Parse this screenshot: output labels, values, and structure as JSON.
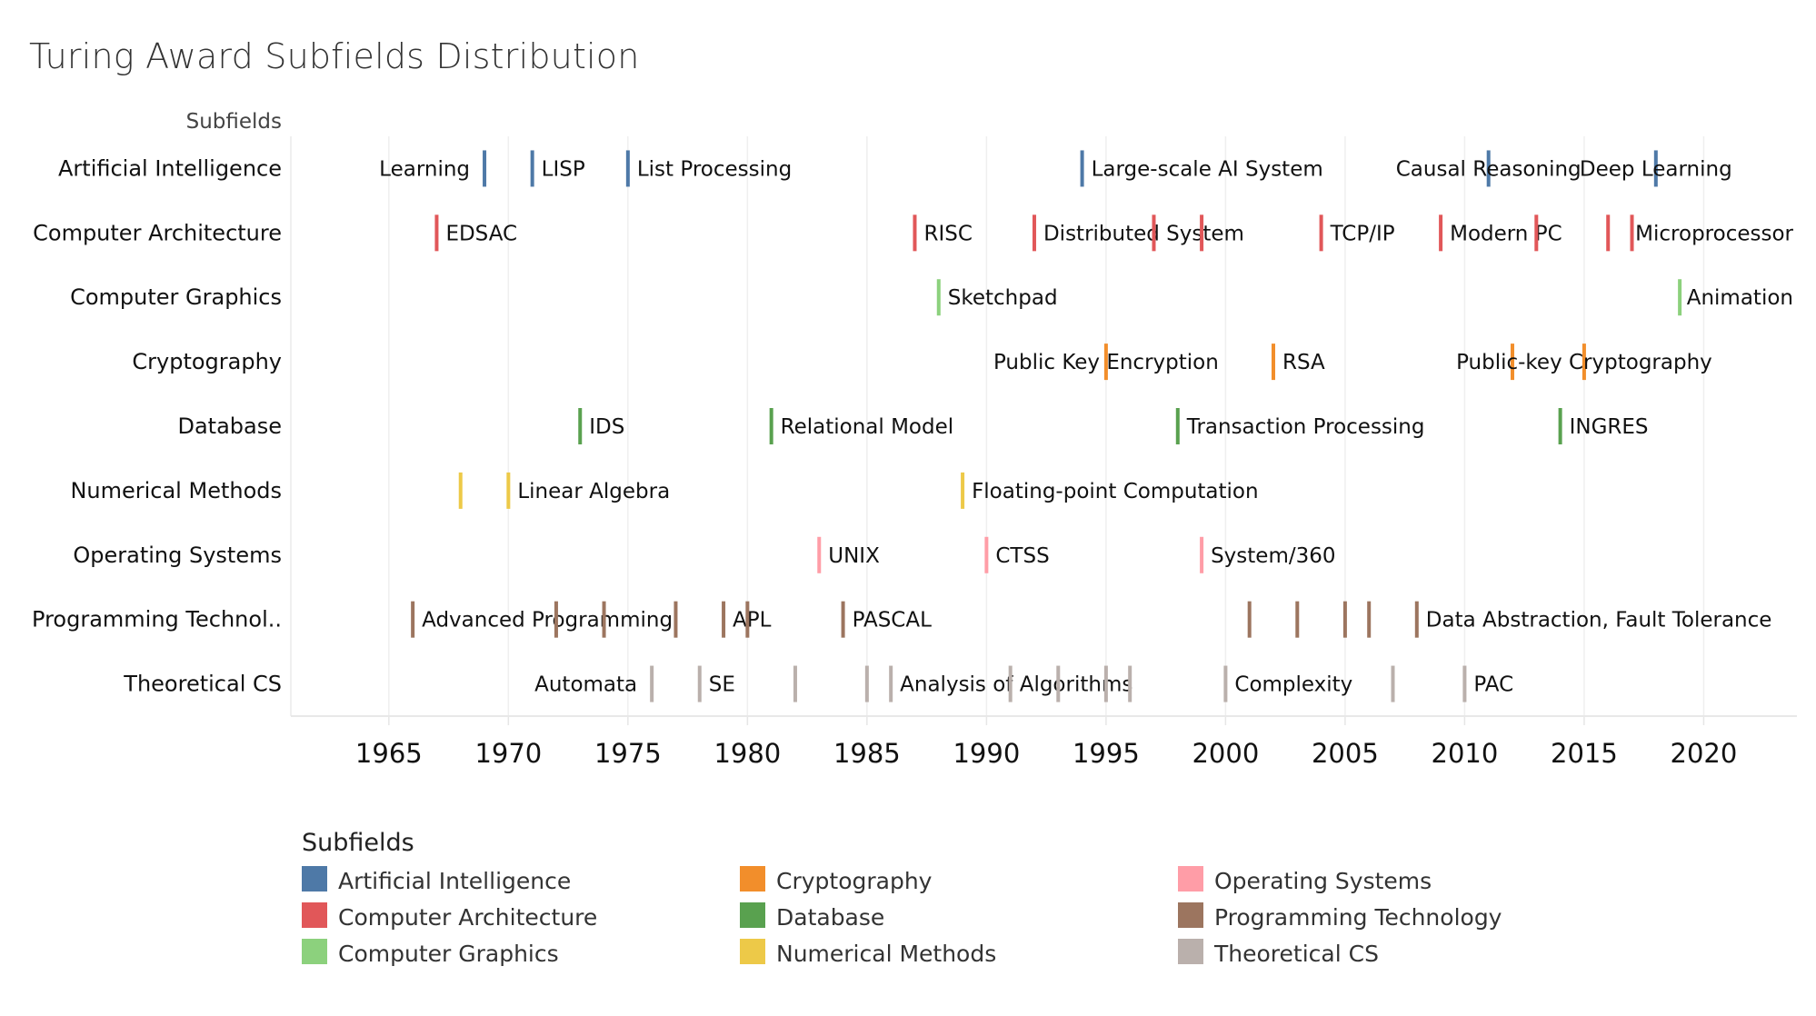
{
  "title": "Turing Award Subfields Distribution",
  "chart_data": {
    "type": "timeline-strip",
    "title": "Turing Award Subfields Distribution",
    "ylabel": "Subfields",
    "xlabel": "",
    "xlim": [
      1960.9,
      2023.9
    ],
    "x_ticks": [
      1965,
      1970,
      1975,
      1980,
      1985,
      1990,
      1995,
      2000,
      2005,
      2010,
      2015,
      2020
    ],
    "grid": true,
    "legend_title": "Subfields",
    "legend_position": "bottom",
    "series": [
      {
        "name": "Artificial Intelligence",
        "display": "Artificial Intelligence",
        "color": "#4e79a7",
        "points": [
          {
            "year": 1969,
            "label": "Learning",
            "label_pos": "left"
          },
          {
            "year": 1971,
            "label": "LISP",
            "label_pos": "right"
          },
          {
            "year": 1975,
            "label": "List Processing",
            "label_pos": "right"
          },
          {
            "year": 1994,
            "label": "Large-scale AI System",
            "label_pos": "right"
          },
          {
            "year": 2011,
            "label": "Causal Reasoning",
            "label_pos": "center"
          },
          {
            "year": 2018,
            "label": "Deep Learning",
            "label_pos": "center"
          }
        ]
      },
      {
        "name": "Computer Architecture",
        "display": "Computer Architecture",
        "color": "#e15759",
        "points": [
          {
            "year": 1967,
            "label": "EDSAC",
            "label_pos": "right"
          },
          {
            "year": 1987,
            "label": "RISC",
            "label_pos": "right"
          },
          {
            "year": 1992,
            "label": "Distributed System",
            "label_pos": "right"
          },
          {
            "year": 1997,
            "label": "",
            "label_pos": "right"
          },
          {
            "year": 1999,
            "label": "",
            "label_pos": "right"
          },
          {
            "year": 2004,
            "label": "TCP/IP",
            "label_pos": "right"
          },
          {
            "year": 2009,
            "label": "Modern PC",
            "label_pos": "right"
          },
          {
            "year": 2013,
            "label": "",
            "label_pos": "right"
          },
          {
            "year": 2016,
            "label": "",
            "label_pos": "right"
          },
          {
            "year": 2017,
            "label": "Microprocessor",
            "label_pos": "right"
          }
        ]
      },
      {
        "name": "Computer Graphics",
        "display": "Computer Graphics",
        "color": "#8cd17d",
        "points": [
          {
            "year": 1988,
            "label": "Sketchpad",
            "label_pos": "right"
          },
          {
            "year": 2019,
            "label": "Animation",
            "label_pos": "right"
          }
        ]
      },
      {
        "name": "Cryptography",
        "display": "Cryptography",
        "color": "#f28e2b",
        "points": [
          {
            "year": 1995,
            "label": "Public Key Encryption",
            "label_pos": "center"
          },
          {
            "year": 2002,
            "label": "RSA",
            "label_pos": "right"
          },
          {
            "year": 2012,
            "label": "",
            "label_pos": "right"
          },
          {
            "year": 2015,
            "label": "Public-key Cryptography",
            "label_pos": "center"
          }
        ]
      },
      {
        "name": "Database",
        "display": "Database",
        "color": "#59a14f",
        "points": [
          {
            "year": 1973,
            "label": "IDS",
            "label_pos": "right"
          },
          {
            "year": 1981,
            "label": "Relational Model",
            "label_pos": "right"
          },
          {
            "year": 1998,
            "label": "Transaction Processing",
            "label_pos": "right"
          },
          {
            "year": 2014,
            "label": "INGRES",
            "label_pos": "right"
          }
        ]
      },
      {
        "name": "Numerical Methods",
        "display": "Numerical Methods",
        "color": "#edc948",
        "points": [
          {
            "year": 1968,
            "label": "",
            "label_pos": "right"
          },
          {
            "year": 1970,
            "label": "Linear Algebra",
            "label_pos": "right"
          },
          {
            "year": 1989,
            "label": "Floating-point Computation",
            "label_pos": "right"
          }
        ]
      },
      {
        "name": "Operating Systems",
        "display": "Operating Systems",
        "color": "#ff9da7",
        "points": [
          {
            "year": 1983,
            "label": "UNIX",
            "label_pos": "right"
          },
          {
            "year": 1990,
            "label": "CTSS",
            "label_pos": "right"
          },
          {
            "year": 1999,
            "label": "System/360",
            "label_pos": "right"
          }
        ]
      },
      {
        "name": "Programming Technology",
        "display": "Programming Technol..",
        "color": "#9c755f",
        "points": [
          {
            "year": 1966,
            "label": "Advanced Programming",
            "label_pos": "right"
          },
          {
            "year": 1972,
            "label": "",
            "label_pos": "right"
          },
          {
            "year": 1974,
            "label": "",
            "label_pos": "right"
          },
          {
            "year": 1977,
            "label": "",
            "label_pos": "right"
          },
          {
            "year": 1979,
            "label": "APL",
            "label_pos": "right"
          },
          {
            "year": 1980,
            "label": "",
            "label_pos": "right"
          },
          {
            "year": 1984,
            "label": "PASCAL",
            "label_pos": "right"
          },
          {
            "year": 2001,
            "label": "",
            "label_pos": "right"
          },
          {
            "year": 2003,
            "label": "",
            "label_pos": "right"
          },
          {
            "year": 2005,
            "label": "",
            "label_pos": "right"
          },
          {
            "year": 2006,
            "label": "",
            "label_pos": "right"
          },
          {
            "year": 2008,
            "label": "Data Abstraction, Fault Tolerance",
            "label_pos": "right"
          }
        ]
      },
      {
        "name": "Theoretical CS",
        "display": "Theoretical CS",
        "color": "#bab0ac",
        "points": [
          {
            "year": 1976,
            "label": "Automata",
            "label_pos": "left"
          },
          {
            "year": 1978,
            "label": "SE",
            "label_pos": "right"
          },
          {
            "year": 1982,
            "label": "",
            "label_pos": "right"
          },
          {
            "year": 1985,
            "label": "",
            "label_pos": "right"
          },
          {
            "year": 1986,
            "label": "Analysis of Algorithms",
            "label_pos": "right"
          },
          {
            "year": 1991,
            "label": "",
            "label_pos": "right"
          },
          {
            "year": 1993,
            "label": "",
            "label_pos": "right"
          },
          {
            "year": 1995,
            "label": "",
            "label_pos": "right"
          },
          {
            "year": 1996,
            "label": "",
            "label_pos": "right"
          },
          {
            "year": 2000,
            "label": "Complexity",
            "label_pos": "right"
          },
          {
            "year": 2007,
            "label": "",
            "label_pos": "right"
          },
          {
            "year": 2010,
            "label": "PAC",
            "label_pos": "right"
          }
        ]
      }
    ]
  },
  "legend": {
    "title": "Subfields",
    "items": [
      {
        "label": "Artificial Intelligence",
        "color": "#4e79a7"
      },
      {
        "label": "Computer Architecture",
        "color": "#e15759"
      },
      {
        "label": "Computer Graphics",
        "color": "#8cd17d"
      },
      {
        "label": "Cryptography",
        "color": "#f28e2b"
      },
      {
        "label": "Database",
        "color": "#59a14f"
      },
      {
        "label": "Numerical Methods",
        "color": "#edc948"
      },
      {
        "label": "Operating Systems",
        "color": "#ff9da7"
      },
      {
        "label": "Programming Technology",
        "color": "#9c755f"
      },
      {
        "label": "Theoretical CS",
        "color": "#bab0ac"
      }
    ]
  }
}
